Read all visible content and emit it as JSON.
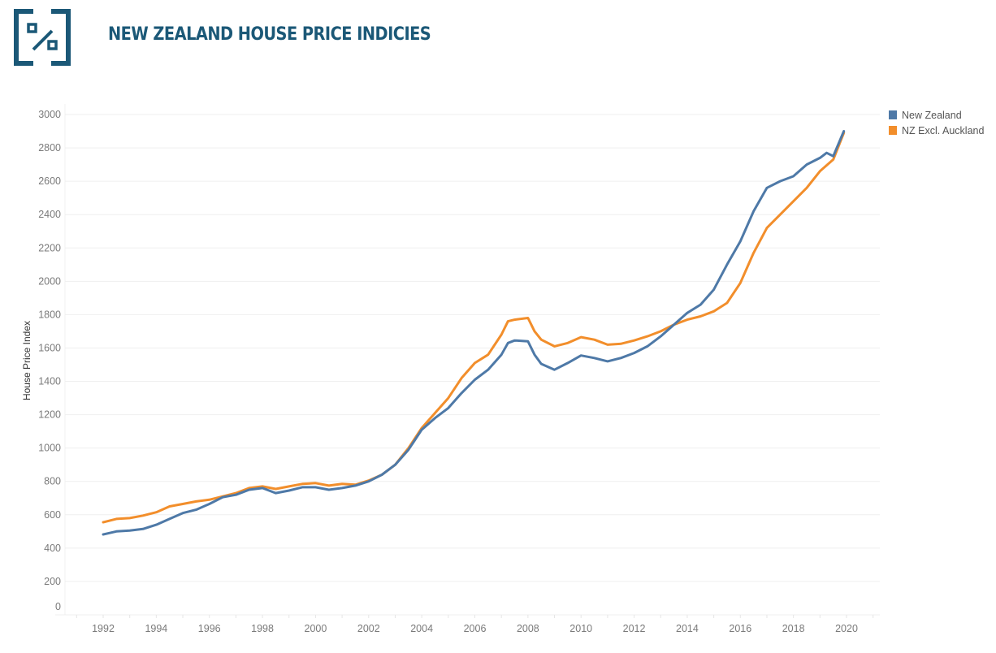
{
  "header": {
    "title": "NEW ZEALAND HOUSE PRICE INDICIES",
    "logo_icon": "percent-bracket-icon"
  },
  "colors": {
    "brand": "#1b5877",
    "new_zealand": "#4e79a7",
    "nz_excl_auckland": "#f28e2b"
  },
  "chart_data": {
    "type": "line",
    "title": "NEW ZEALAND HOUSE PRICE INDICIES",
    "xlabel": "",
    "ylabel": "House Price Index",
    "xlim": [
      1990.6,
      2021.2
    ],
    "ylim": [
      0,
      3000
    ],
    "x_ticks": [
      "1992",
      "1994",
      "1996",
      "1998",
      "2000",
      "2002",
      "2004",
      "2006",
      "2008",
      "2010",
      "2012",
      "2014",
      "2016",
      "2018",
      "2020"
    ],
    "y_ticks": [
      "0",
      "200",
      "400",
      "600",
      "800",
      "1000",
      "1200",
      "1400",
      "1600",
      "1800",
      "2000",
      "2200",
      "2400",
      "2600",
      "2800",
      "3000"
    ],
    "grid": true,
    "legend_position": "top-right",
    "series": [
      {
        "name": "New Zealand",
        "color": "#4e79a7",
        "x": [
          1992.0,
          1992.5,
          1993.0,
          1993.5,
          1994.0,
          1994.5,
          1995.0,
          1995.5,
          1996.0,
          1996.5,
          1997.0,
          1997.5,
          1998.0,
          1998.5,
          1999.0,
          1999.5,
          2000.0,
          2000.5,
          2001.0,
          2001.5,
          2002.0,
          2002.5,
          2003.0,
          2003.5,
          2004.0,
          2004.5,
          2005.0,
          2005.5,
          2006.0,
          2006.5,
          2007.0,
          2007.25,
          2007.5,
          2008.0,
          2008.25,
          2008.5,
          2009.0,
          2009.5,
          2010.0,
          2010.5,
          2011.0,
          2011.5,
          2012.0,
          2012.5,
          2013.0,
          2013.5,
          2014.0,
          2014.5,
          2015.0,
          2015.5,
          2016.0,
          2016.5,
          2017.0,
          2017.5,
          2018.0,
          2018.5,
          2019.0,
          2019.25,
          2019.5,
          2019.9
        ],
        "values": [
          482,
          500,
          505,
          515,
          540,
          575,
          610,
          630,
          665,
          705,
          720,
          750,
          760,
          730,
          745,
          765,
          765,
          750,
          760,
          775,
          800,
          840,
          900,
          990,
          1110,
          1180,
          1240,
          1330,
          1410,
          1470,
          1560,
          1630,
          1645,
          1640,
          1560,
          1505,
          1470,
          1510,
          1555,
          1540,
          1520,
          1540,
          1570,
          1610,
          1670,
          1740,
          1810,
          1860,
          1950,
          2100,
          2240,
          2420,
          2560,
          2600,
          2630,
          2700,
          2740,
          2770,
          2750,
          2900
        ]
      },
      {
        "name": "NZ Excl. Auckland",
        "color": "#f28e2b",
        "x": [
          1992.0,
          1992.5,
          1993.0,
          1993.5,
          1994.0,
          1994.5,
          1995.0,
          1995.5,
          1996.0,
          1996.5,
          1997.0,
          1997.5,
          1998.0,
          1998.5,
          1999.0,
          1999.5,
          2000.0,
          2000.5,
          2001.0,
          2001.5,
          2002.0,
          2002.5,
          2003.0,
          2003.5,
          2004.0,
          2004.5,
          2005.0,
          2005.5,
          2006.0,
          2006.5,
          2007.0,
          2007.25,
          2007.5,
          2008.0,
          2008.25,
          2008.5,
          2009.0,
          2009.5,
          2010.0,
          2010.5,
          2011.0,
          2011.5,
          2012.0,
          2012.5,
          2013.0,
          2013.5,
          2014.0,
          2014.5,
          2015.0,
          2015.5,
          2016.0,
          2016.5,
          2017.0,
          2017.5,
          2018.0,
          2018.5,
          2019.0,
          2019.5,
          2019.9
        ],
        "values": [
          555,
          575,
          580,
          595,
          615,
          650,
          665,
          680,
          690,
          710,
          730,
          760,
          770,
          755,
          770,
          785,
          790,
          775,
          785,
          780,
          805,
          840,
          900,
          1000,
          1120,
          1210,
          1300,
          1420,
          1510,
          1560,
          1680,
          1760,
          1770,
          1780,
          1700,
          1650,
          1610,
          1630,
          1665,
          1650,
          1620,
          1625,
          1645,
          1670,
          1700,
          1740,
          1770,
          1790,
          1820,
          1870,
          1990,
          2170,
          2320,
          2400,
          2480,
          2560,
          2660,
          2730,
          2890
        ]
      }
    ]
  }
}
